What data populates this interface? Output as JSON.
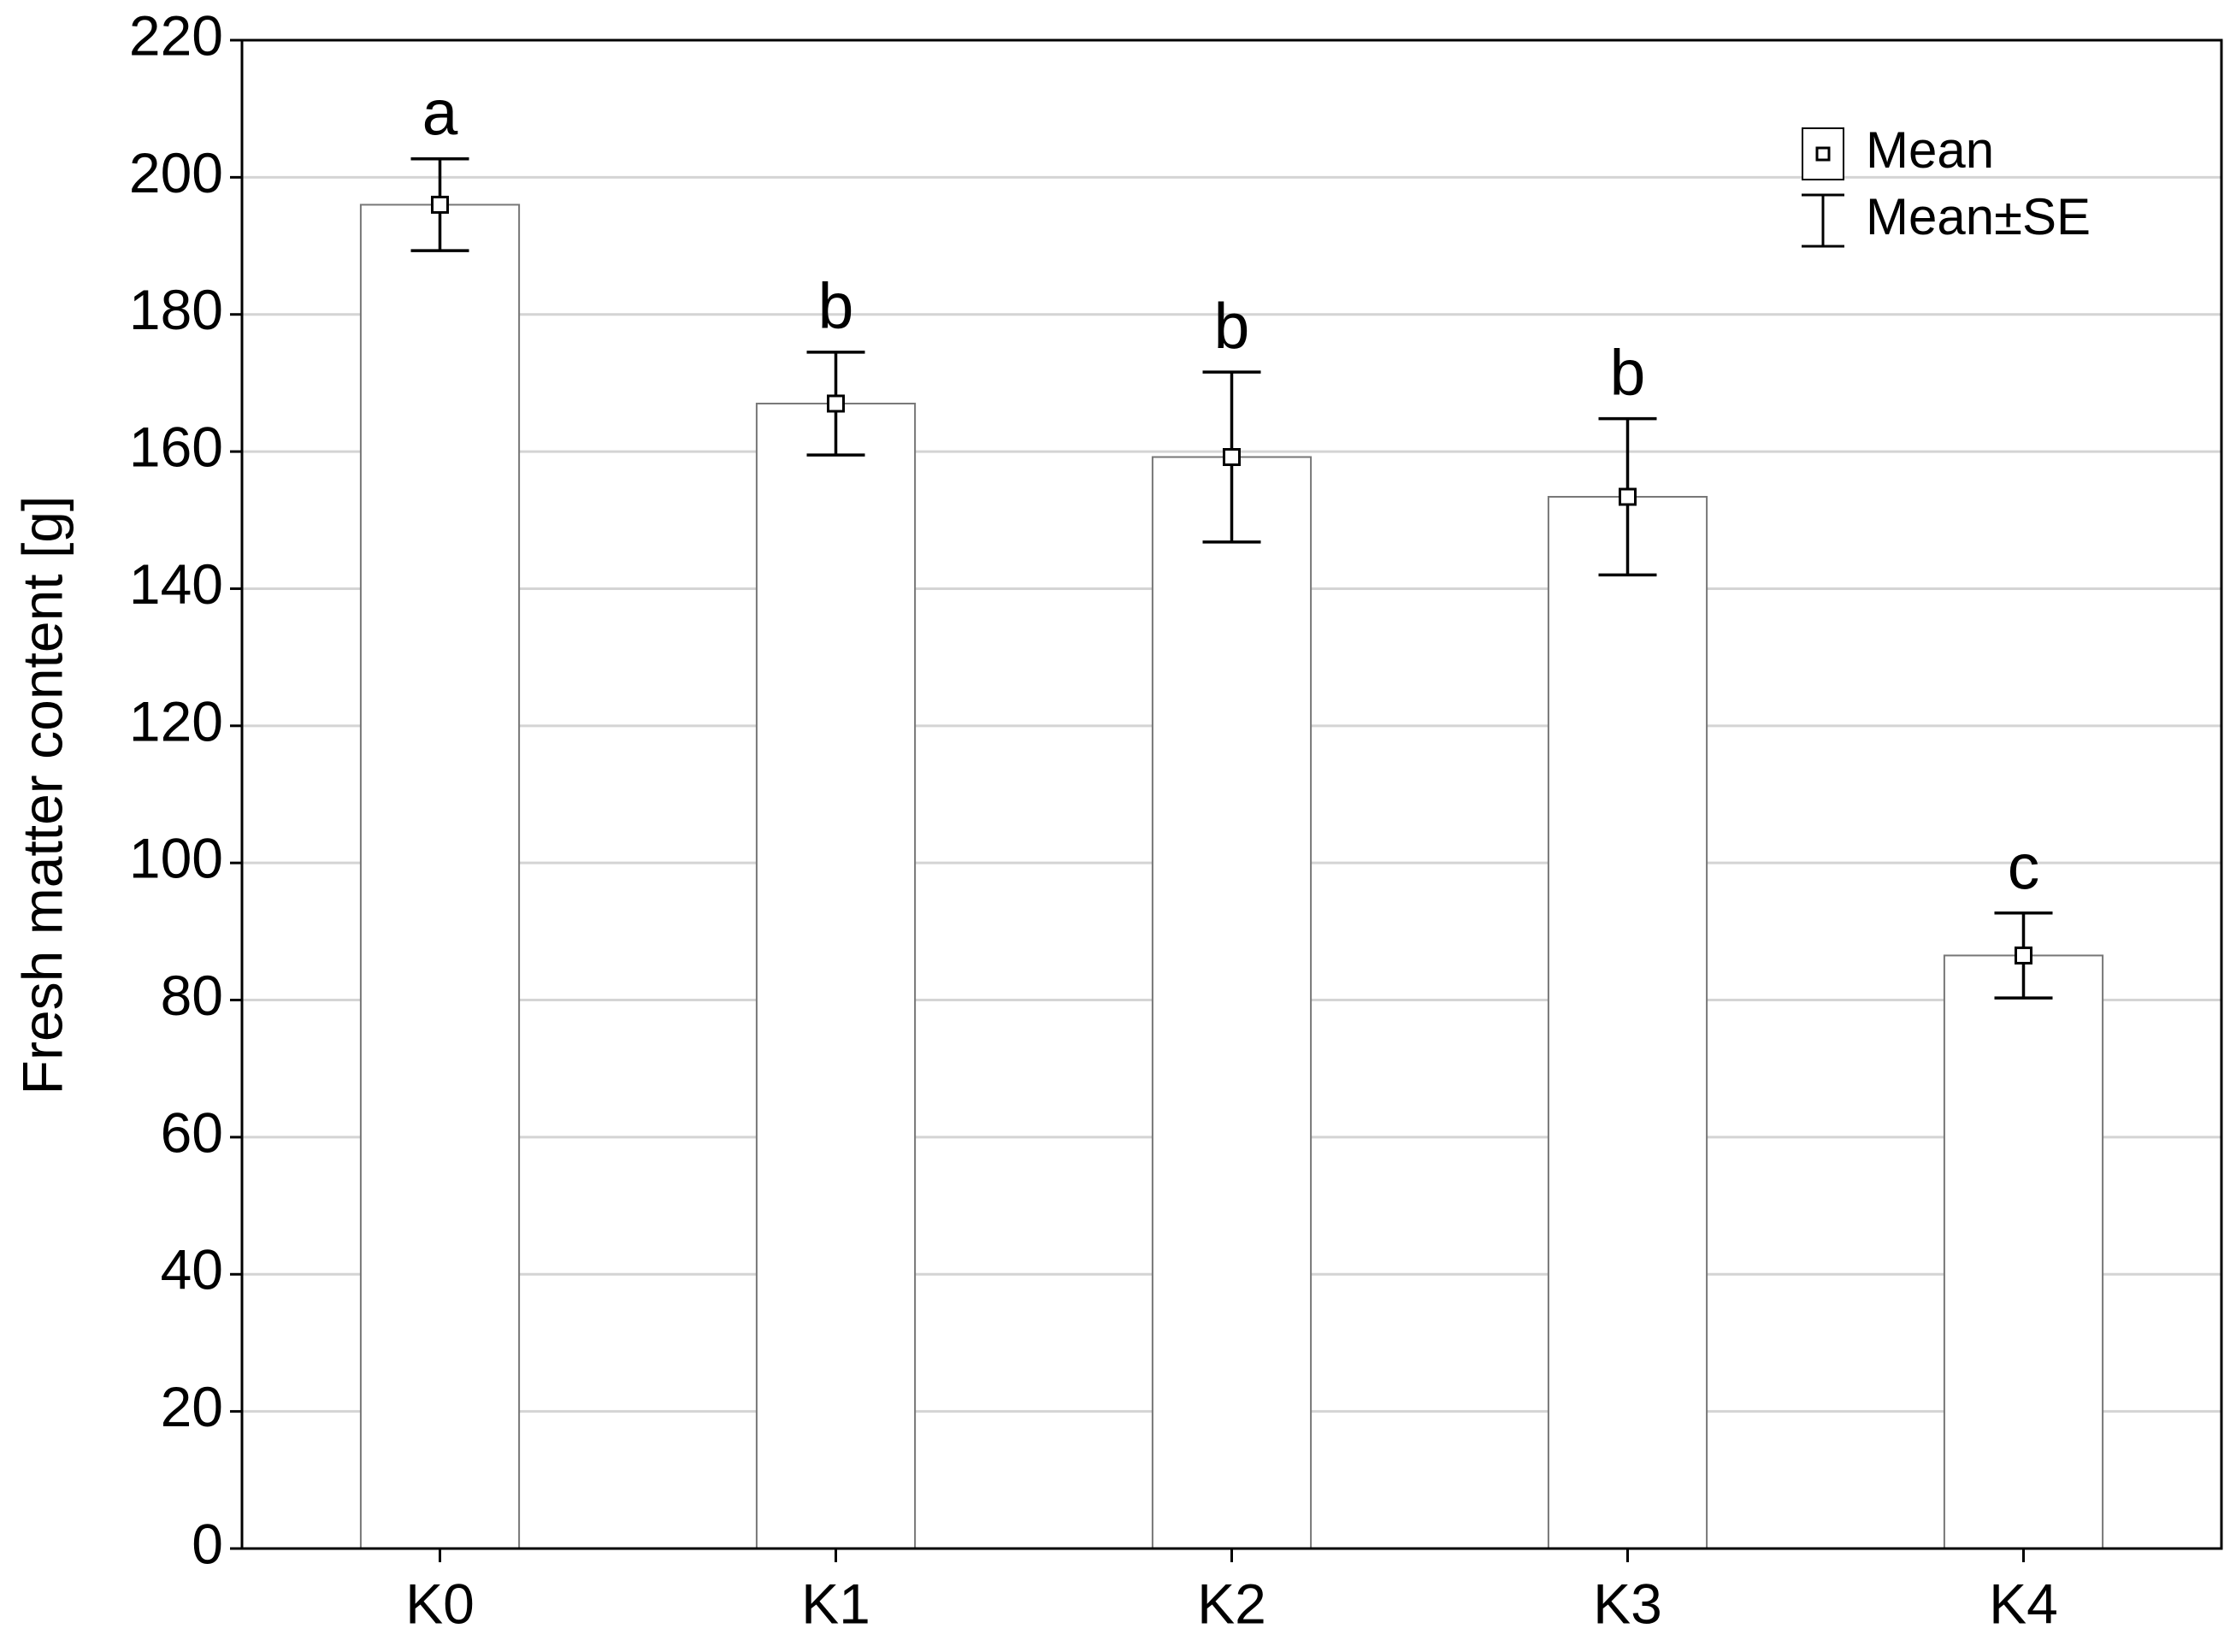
{
  "chart_data": {
    "type": "bar",
    "y_label": "Fresh matter content [g]",
    "categories": [
      "K0",
      "K1",
      "K2",
      "K3",
      "K4"
    ],
    "series": [
      {
        "name": "Mean",
        "error_name": "Mean±SE",
        "color": "#ffffff",
        "values": [
          196,
          167,
          159.2,
          153.4,
          86.5
        ],
        "errors": [
          6.7,
          7.5,
          12.4,
          11.4,
          6.2
        ]
      }
    ],
    "annotations": [
      "a",
      "b",
      "b",
      "b",
      "c"
    ],
    "ylim": [
      0,
      220
    ],
    "yticks": [
      0,
      20,
      40,
      60,
      80,
      100,
      120,
      140,
      160,
      180,
      200,
      220
    ],
    "grid": true,
    "legend": "upper right"
  }
}
